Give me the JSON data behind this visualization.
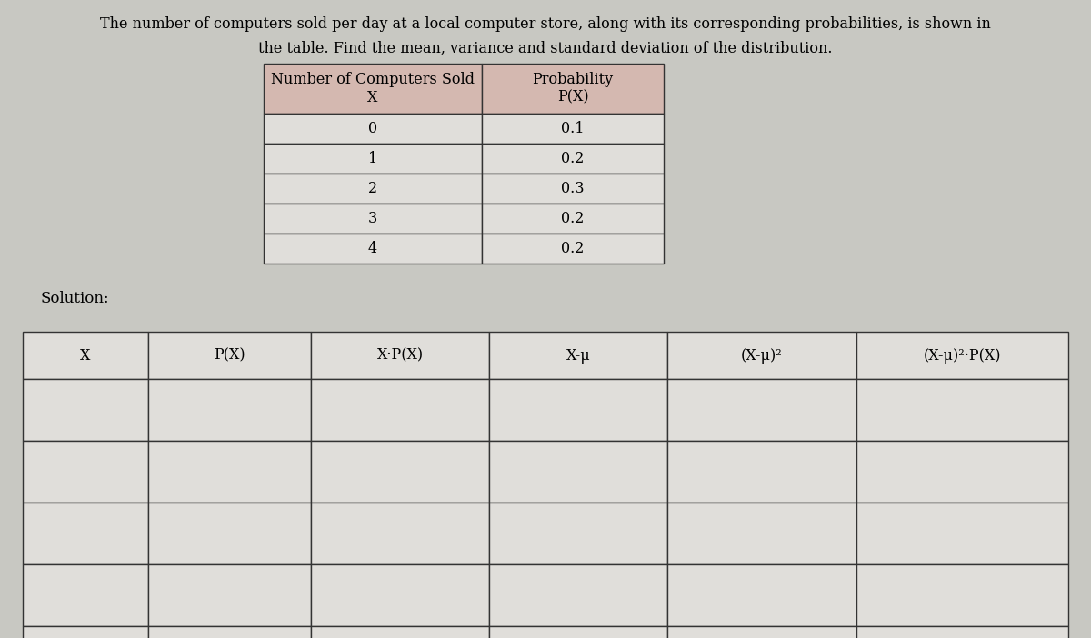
{
  "title_line1": "    The number of computers sold per day at a local computer store, along with its corresponding probabilities, is shown in",
  "title_line2": "the table. Find the mean, variance and standard deviation of the distribution.",
  "table1_col1_header": "Number of Computers Sold\nX",
  "table1_col2_header": "Probability\nP(X)",
  "table1_data": [
    [
      "0",
      "0.1"
    ],
    [
      "1",
      "0.2"
    ],
    [
      "2",
      "0.3"
    ],
    [
      "3",
      "0.2"
    ],
    [
      "4",
      "0.2"
    ]
  ],
  "solution_label": "Solution:",
  "table2_headers": [
    "X",
    "P(X)",
    "X·P(X)",
    "X-μ",
    "(X-μ)²",
    "(X-μ)²·P(X)"
  ],
  "table2_rows": 5,
  "bg_color": "#c8c8c2",
  "table1_header_bg": "#d4b8b0",
  "table_cell_bg": "#e0deda",
  "table2_header_bg": "#e0deda",
  "title_fontsize": 11.5,
  "table_fontsize": 11.5
}
